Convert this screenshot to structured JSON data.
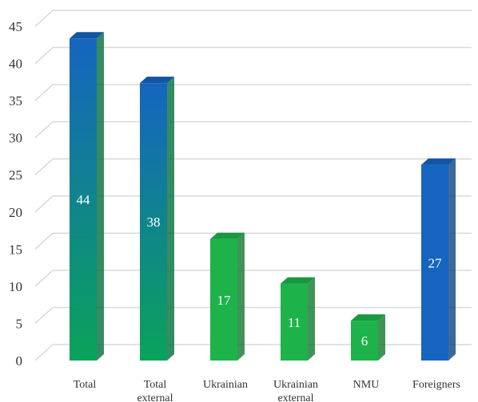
{
  "chart_data": {
    "type": "bar",
    "categories": [
      "Total",
      "Total external",
      "Ukrainian",
      "Ukrainian external",
      "NMU",
      "Foreigners"
    ],
    "values": [
      44,
      38,
      17,
      11,
      6,
      27
    ],
    "data_labels": [
      "44",
      "38",
      "17",
      "11",
      "6",
      "27"
    ],
    "ylim": [
      0,
      45
    ],
    "yticks": [
      0,
      5,
      10,
      15,
      20,
      25,
      30,
      35,
      40,
      45
    ],
    "grid": true,
    "bar_colors": [
      "#1565c0",
      "#1565c0",
      "#1db34a",
      "#1db34a",
      "#1db34a",
      "#1565c0"
    ],
    "bar_gradient_bottom": [
      "#0aa35a",
      "#0aa35a",
      "#1db34a",
      "#1db34a",
      "#1db34a",
      "#1565c0"
    ],
    "title": "",
    "xlabel": "",
    "ylabel": ""
  }
}
